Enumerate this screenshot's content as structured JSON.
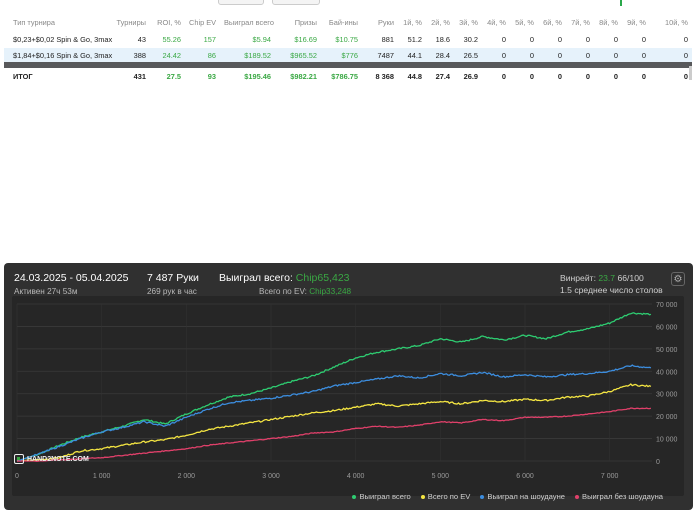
{
  "table": {
    "headers": [
      "Тип турнира",
      "Турниры",
      "ROI, %",
      "Chip EV",
      "Выиграл всего",
      "Призы",
      "Бай-ины",
      "Руки",
      "1й, %",
      "2й, %",
      "3й, %",
      "4й, %",
      "5й, %",
      "6й, %",
      "7й, %",
      "8й, %",
      "9й, %",
      "10й, %"
    ],
    "rows": [
      [
        "$0,23+$0,02 Spin & Go, 3max",
        "43",
        "55.26",
        "157",
        "$5.94",
        "$16.69",
        "$10.75",
        "881",
        "51.2",
        "18.6",
        "30.2",
        "0",
        "0",
        "0",
        "0",
        "0",
        "0",
        "0"
      ],
      [
        "$1,84+$0,16 Spin & Go, 3max",
        "388",
        "24.42",
        "86",
        "$189.52",
        "$965.52",
        "$776",
        "7487",
        "44.1",
        "28.4",
        "26.5",
        "0",
        "0",
        "0",
        "0",
        "0",
        "0",
        "0"
      ]
    ],
    "total": [
      "ИТОГ",
      "431",
      "27.5",
      "93",
      "$195.46",
      "$982.21",
      "$786.75",
      "8 368",
      "44.8",
      "27.4",
      "26.9",
      "0",
      "0",
      "0",
      "0",
      "0",
      "0",
      "0"
    ]
  },
  "stats": {
    "date_range": "24.03.2025 - 05.04.2025",
    "active": "Активен 27ч 53м",
    "hands": "7 487 Руки",
    "hands_per_hour": "269 рук в час",
    "won_total_label": "Выиграл всего:",
    "won_total_value": "Chip65,423",
    "ev_total_label": "Всего по EV:",
    "ev_total_value": "Chip33,248",
    "winrate_label": "Винрейт:",
    "winrate_value": "23.7",
    "winrate_suffix": "66/100",
    "avg_stack": "1.5 среднее число столов"
  },
  "logo_text": "HAND2NOTE.COM",
  "colors": {
    "won": "#2ecc71",
    "ev": "#f4e542",
    "showdown": "#3c8dde",
    "noshowdown": "#e0406a",
    "accent_green": "#3aa844"
  },
  "chart_data": {
    "type": "line",
    "xlim": [
      0,
      7500
    ],
    "ylim": [
      0,
      70000
    ],
    "x_ticks": [
      0,
      1000,
      2000,
      3000,
      4000,
      5000,
      6000,
      7000
    ],
    "x_tick_labels": [
      "0",
      "1 000",
      "2 000",
      "3 000",
      "4 000",
      "5 000",
      "6 000",
      "7 000"
    ],
    "y_ticks": [
      0,
      10000,
      20000,
      30000,
      40000,
      50000,
      60000,
      70000
    ],
    "y_tick_labels": [
      "0",
      "10 000",
      "20 000",
      "30 000",
      "40 000",
      "50 000",
      "60 000",
      "70 000"
    ],
    "x": [
      0,
      250,
      500,
      750,
      1000,
      1250,
      1500,
      1750,
      2000,
      2250,
      2500,
      2750,
      3000,
      3250,
      3500,
      3750,
      4000,
      4250,
      4500,
      4750,
      5000,
      5250,
      5500,
      5750,
      6000,
      6250,
      6500,
      6750,
      7000,
      7250,
      7487
    ],
    "series": [
      {
        "name": "Выиграл всего",
        "color": "#2ecc71",
        "values": [
          0,
          3000,
          7000,
          10500,
          13000,
          15500,
          18500,
          16500,
          21000,
          25000,
          28500,
          30000,
          32500,
          35500,
          38000,
          42000,
          46000,
          48500,
          50000,
          51500,
          54500,
          53000,
          55500,
          54000,
          56000,
          54500,
          57500,
          59000,
          61500,
          66000,
          65423
        ]
      },
      {
        "name": "Всего по EV",
        "color": "#f4e542",
        "values": [
          0,
          500,
          1500,
          4500,
          5500,
          7000,
          8500,
          9500,
          11500,
          14000,
          15500,
          17000,
          18500,
          20000,
          21500,
          22500,
          24000,
          25500,
          24500,
          25500,
          26500,
          25500,
          27000,
          26500,
          27500,
          27000,
          28500,
          29000,
          31000,
          34000,
          33248
        ]
      },
      {
        "name": "Выиграл на шоудауне",
        "color": "#3c8dde",
        "values": [
          0,
          3000,
          6500,
          10000,
          13000,
          15000,
          17500,
          15500,
          19500,
          23000,
          26000,
          27000,
          28000,
          29500,
          31000,
          33500,
          35000,
          36500,
          38000,
          37000,
          39000,
          38000,
          39500,
          37500,
          38500,
          37500,
          38500,
          39000,
          40000,
          42500,
          41500
        ]
      },
      {
        "name": "Выиграл без шоудауна",
        "color": "#e0406a",
        "values": [
          0,
          0,
          500,
          1000,
          1500,
          2500,
          3500,
          4500,
          5500,
          7000,
          8000,
          9000,
          10000,
          11000,
          12500,
          13000,
          14500,
          15500,
          15000,
          16000,
          17500,
          17000,
          18500,
          18000,
          19500,
          19500,
          20000,
          21000,
          22000,
          23500,
          23500
        ]
      }
    ]
  }
}
